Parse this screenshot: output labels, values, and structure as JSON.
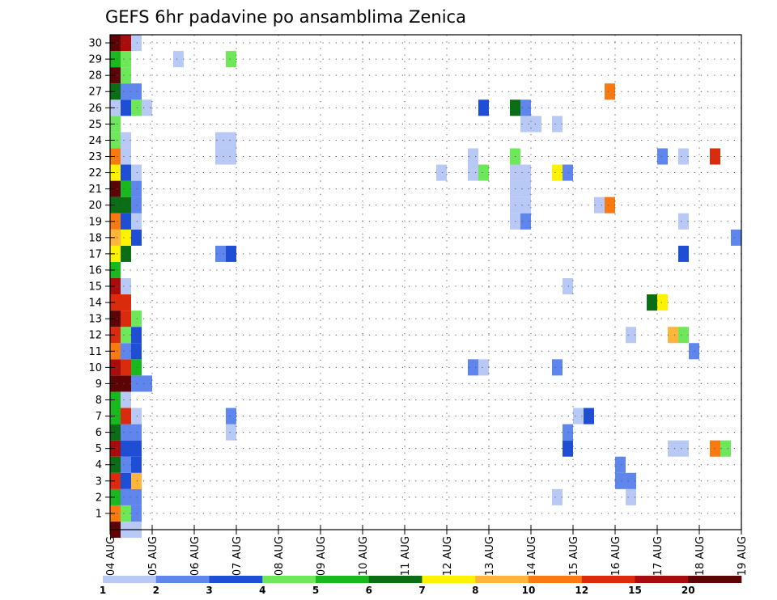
{
  "chart_data": {
    "type": "heatmap",
    "title": "GEFS 6hr padavine po ansamblima Zenica",
    "xlabel": "",
    "ylabel": "",
    "x_ticks": [
      "04 AUG",
      "05 AUG",
      "06 AUG",
      "07 AUG",
      "08 AUG",
      "09 AUG",
      "10 AUG",
      "11 AUG",
      "12 AUG",
      "13 AUG",
      "14 AUG",
      "15 AUG",
      "16 AUG",
      "17 AUG",
      "18 AUG",
      "19 AUG"
    ],
    "y_ticks": [
      1,
      2,
      3,
      4,
      5,
      6,
      7,
      8,
      9,
      10,
      11,
      12,
      13,
      14,
      15,
      16,
      17,
      18,
      19,
      20,
      21,
      22,
      23,
      24,
      25,
      26,
      27,
      28,
      29,
      30
    ],
    "xlim": [
      0,
      15
    ],
    "ylim": [
      0,
      30
    ],
    "grid": true,
    "colorbar": {
      "labels": [
        "1",
        "2",
        "3",
        "4",
        "5",
        "6",
        "7",
        "8",
        "10",
        "12",
        "15",
        "20"
      ],
      "colors": [
        "#b8c9f5",
        "#5f86ec",
        "#1f4ed6",
        "#6ee85a",
        "#19b81f",
        "#0b6e14",
        "#fff200",
        "#ffb43c",
        "#f97a10",
        "#db2a0c",
        "#a80c0c",
        "#5c0406"
      ]
    },
    "cells": [
      [
        0.0,
        0,
        11
      ],
      [
        0.0,
        1,
        8
      ],
      [
        0.0,
        2,
        4
      ],
      [
        0.0,
        3,
        9
      ],
      [
        0.0,
        4,
        5
      ],
      [
        0.0,
        5,
        10
      ],
      [
        0.0,
        6,
        5
      ],
      [
        0.0,
        7,
        4
      ],
      [
        0.0,
        8,
        4
      ],
      [
        0.0,
        9,
        11
      ],
      [
        0.0,
        10,
        10
      ],
      [
        0.0,
        11,
        8
      ],
      [
        0.0,
        12,
        9
      ],
      [
        0.0,
        13,
        11
      ],
      [
        0.0,
        14,
        9
      ],
      [
        0.0,
        15,
        10
      ],
      [
        0.0,
        16,
        4
      ],
      [
        0.0,
        17,
        6
      ],
      [
        0.0,
        18,
        7
      ],
      [
        0.0,
        19,
        8
      ],
      [
        0.0,
        20,
        5
      ],
      [
        0.0,
        21,
        11
      ],
      [
        0.0,
        22,
        6
      ],
      [
        0.0,
        23,
        8
      ],
      [
        0.0,
        24,
        3
      ],
      [
        0.0,
        25,
        3
      ],
      [
        0.0,
        26,
        0
      ],
      [
        0.0,
        27,
        5
      ],
      [
        0.0,
        28,
        11
      ],
      [
        0.0,
        29,
        4
      ],
      [
        0.0,
        30,
        11
      ],
      [
        0.25,
        0,
        0
      ],
      [
        0.25,
        1,
        3
      ],
      [
        0.25,
        2,
        1
      ],
      [
        0.25,
        3,
        2
      ],
      [
        0.25,
        4,
        1
      ],
      [
        0.25,
        5,
        2
      ],
      [
        0.25,
        6,
        1
      ],
      [
        0.25,
        7,
        9
      ],
      [
        0.25,
        8,
        0
      ],
      [
        0.25,
        9,
        11
      ],
      [
        0.25,
        10,
        9
      ],
      [
        0.25,
        11,
        1
      ],
      [
        0.25,
        12,
        3
      ],
      [
        0.25,
        13,
        9
      ],
      [
        0.25,
        14,
        9
      ],
      [
        0.25,
        15,
        0
      ],
      [
        0.25,
        17,
        5
      ],
      [
        0.25,
        18,
        6
      ],
      [
        0.25,
        19,
        2
      ],
      [
        0.25,
        20,
        5
      ],
      [
        0.25,
        21,
        4
      ],
      [
        0.25,
        22,
        2
      ],
      [
        0.25,
        23,
        0
      ],
      [
        0.25,
        24,
        0
      ],
      [
        0.25,
        26,
        2
      ],
      [
        0.25,
        27,
        1
      ],
      [
        0.25,
        28,
        3
      ],
      [
        0.25,
        29,
        3
      ],
      [
        0.25,
        30,
        10
      ],
      [
        0.5,
        0,
        0
      ],
      [
        0.5,
        1,
        1
      ],
      [
        0.5,
        2,
        1
      ],
      [
        0.5,
        3,
        7
      ],
      [
        0.5,
        4,
        2
      ],
      [
        0.5,
        5,
        2
      ],
      [
        0.5,
        6,
        1
      ],
      [
        0.5,
        7,
        0
      ],
      [
        0.5,
        9,
        1
      ],
      [
        0.5,
        10,
        4
      ],
      [
        0.5,
        11,
        2
      ],
      [
        0.5,
        12,
        2
      ],
      [
        0.5,
        13,
        3
      ],
      [
        0.5,
        18,
        2
      ],
      [
        0.5,
        19,
        0
      ],
      [
        0.5,
        20,
        1
      ],
      [
        0.5,
        21,
        1
      ],
      [
        0.5,
        22,
        0
      ],
      [
        0.5,
        26,
        3
      ],
      [
        0.5,
        27,
        1
      ],
      [
        0.5,
        30,
        0
      ],
      [
        0.75,
        9,
        1
      ],
      [
        0.75,
        26,
        0
      ],
      [
        1.5,
        29,
        0
      ],
      [
        2.5,
        17,
        1
      ],
      [
        2.5,
        23,
        0
      ],
      [
        2.5,
        24,
        0
      ],
      [
        2.75,
        6,
        0
      ],
      [
        2.75,
        7,
        1
      ],
      [
        2.75,
        17,
        2
      ],
      [
        2.75,
        23,
        0
      ],
      [
        2.75,
        24,
        0
      ],
      [
        2.75,
        29,
        3
      ],
      [
        7.75,
        22,
        0
      ],
      [
        8.5,
        10,
        1
      ],
      [
        8.5,
        22,
        0
      ],
      [
        8.5,
        23,
        0
      ],
      [
        8.75,
        10,
        0
      ],
      [
        8.75,
        22,
        3
      ],
      [
        8.75,
        26,
        2
      ],
      [
        9.5,
        19,
        0
      ],
      [
        9.5,
        20,
        0
      ],
      [
        9.5,
        21,
        0
      ],
      [
        9.5,
        22,
        0
      ],
      [
        9.5,
        23,
        3
      ],
      [
        9.5,
        26,
        5
      ],
      [
        9.75,
        19,
        1
      ],
      [
        9.75,
        20,
        0
      ],
      [
        9.75,
        21,
        0
      ],
      [
        9.75,
        22,
        0
      ],
      [
        9.75,
        25,
        0
      ],
      [
        9.75,
        26,
        1
      ],
      [
        10.0,
        25,
        0
      ],
      [
        10.5,
        2,
        0
      ],
      [
        10.5,
        10,
        1
      ],
      [
        10.5,
        22,
        6
      ],
      [
        10.5,
        25,
        0
      ],
      [
        10.75,
        5,
        2
      ],
      [
        10.75,
        6,
        1
      ],
      [
        10.75,
        15,
        0
      ],
      [
        10.75,
        22,
        1
      ],
      [
        11.0,
        7,
        0
      ],
      [
        11.25,
        7,
        2
      ],
      [
        11.5,
        20,
        0
      ],
      [
        11.75,
        20,
        8
      ],
      [
        11.75,
        27,
        8
      ],
      [
        12.0,
        3,
        1
      ],
      [
        12.0,
        4,
        1
      ],
      [
        12.25,
        2,
        0
      ],
      [
        12.25,
        3,
        1
      ],
      [
        12.25,
        12,
        0
      ],
      [
        12.75,
        14,
        5
      ],
      [
        13.0,
        14,
        6
      ],
      [
        13.0,
        23,
        1
      ],
      [
        13.25,
        5,
        0
      ],
      [
        13.25,
        12,
        7
      ],
      [
        13.5,
        5,
        0
      ],
      [
        13.5,
        12,
        3
      ],
      [
        13.5,
        17,
        2
      ],
      [
        13.5,
        19,
        0
      ],
      [
        13.5,
        23,
        0
      ],
      [
        13.75,
        11,
        1
      ],
      [
        14.25,
        5,
        8
      ],
      [
        14.25,
        23,
        9
      ],
      [
        14.5,
        5,
        3
      ],
      [
        14.75,
        18,
        1
      ],
      [
        15.25,
        18,
        1
      ],
      [
        15.25,
        19,
        0
      ],
      [
        15.25,
        20,
        0
      ],
      [
        15.25,
        22,
        1
      ],
      [
        15.25,
        30,
        4
      ],
      [
        15.5,
        13,
        0
      ],
      [
        15.5,
        21,
        5
      ]
    ]
  }
}
